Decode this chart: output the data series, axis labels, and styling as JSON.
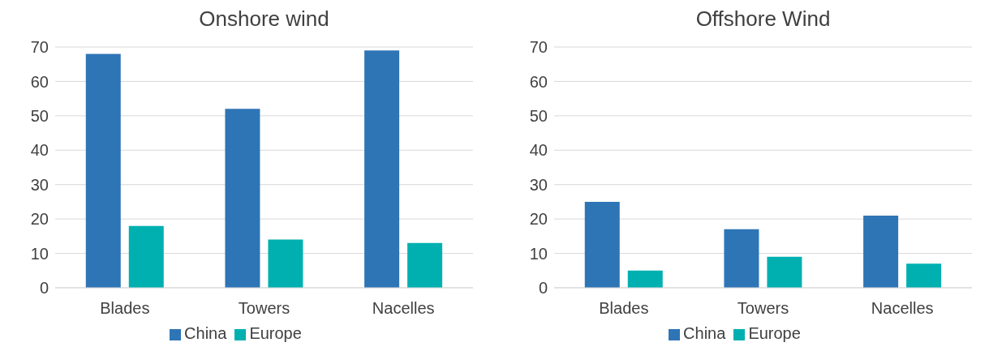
{
  "chart_data": [
    {
      "type": "bar",
      "title": "Onshore wind",
      "categories": [
        "Blades",
        "Towers",
        "Nacelles"
      ],
      "series": [
        {
          "name": "China",
          "color": "#2e75b6",
          "values": [
            68,
            52,
            69
          ]
        },
        {
          "name": "Europe",
          "color": "#00b0b0",
          "values": [
            18,
            14,
            13
          ]
        }
      ],
      "ylim": [
        0,
        70
      ],
      "yticks": [
        0,
        10,
        20,
        30,
        40,
        50,
        60,
        70
      ],
      "grid": "y",
      "legend": "bottom"
    },
    {
      "type": "bar",
      "title": "Offshore Wind",
      "categories": [
        "Blades",
        "Towers",
        "Nacelles"
      ],
      "series": [
        {
          "name": "China",
          "color": "#2e75b6",
          "values": [
            25,
            17,
            21
          ]
        },
        {
          "name": "Europe",
          "color": "#00b0b0",
          "values": [
            5,
            9,
            7
          ]
        }
      ],
      "ylim": [
        0,
        70
      ],
      "yticks": [
        0,
        10,
        20,
        30,
        40,
        50,
        60,
        70
      ],
      "grid": "y",
      "legend": "bottom"
    }
  ]
}
